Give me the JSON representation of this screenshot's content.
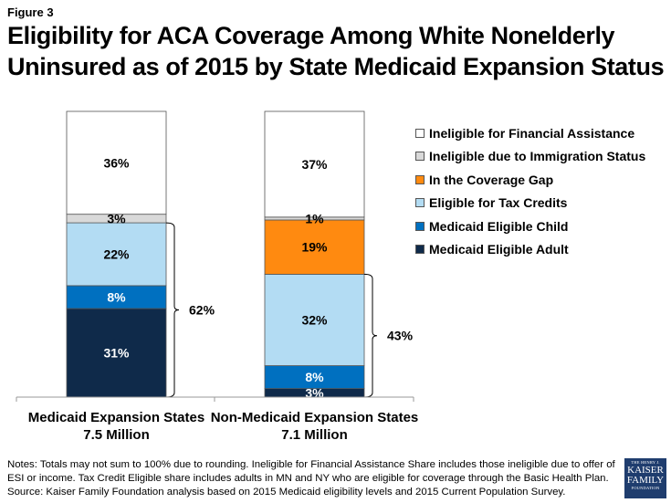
{
  "figure_label": "Figure 3",
  "title": "Eligibility for ACA Coverage Among White Nonelderly Uninsured as of 2015 by State Medicaid Expansion Status",
  "chart_data": {
    "type": "bar",
    "stacked": true,
    "percent_stacked": true,
    "title": "Eligibility for ACA Coverage Among White Nonelderly Uninsured as of 2015 by State Medicaid Expansion Status",
    "xlabel": "",
    "ylabel": "",
    "ylim": [
      0,
      100
    ],
    "grid": false,
    "legend_position": "right",
    "categories": [
      {
        "name": "Medicaid Expansion States",
        "subtitle": "7.5 Million"
      },
      {
        "name": "Non-Medicaid Expansion States",
        "subtitle": "7.1 Million"
      }
    ],
    "series": [
      {
        "name": "Medicaid Eligible Adult",
        "color": "#0f2a4a",
        "label_color": "#ffffff",
        "values": [
          31,
          3
        ],
        "labels": [
          "31%",
          "3%"
        ]
      },
      {
        "name": "Medicaid Eligible Child",
        "color": "#0070c0",
        "label_color": "#ffffff",
        "values": [
          8,
          8
        ],
        "labels": [
          "8%",
          "8%"
        ]
      },
      {
        "name": "Eligible for Tax Credits",
        "color": "#b3dcf3",
        "label_color": "#000000",
        "values": [
          22,
          32
        ],
        "labels": [
          "22%",
          "32%"
        ]
      },
      {
        "name": "In the Coverage Gap",
        "color": "#ff8a10",
        "label_color": "#000000",
        "values": [
          0,
          19
        ],
        "labels": [
          "",
          "19%"
        ]
      },
      {
        "name": "Ineligible due to Immigration Status",
        "color": "#d9d9d9",
        "label_color": "#000000",
        "values": [
          3,
          1
        ],
        "labels": [
          "3%",
          "1%"
        ]
      },
      {
        "name": "Ineligible for Financial Assistance",
        "color": "#ffffff",
        "label_color": "#000000",
        "values": [
          36,
          37
        ],
        "labels": [
          "36%",
          "37%"
        ]
      }
    ],
    "annotations": [
      {
        "category": 0,
        "label": "62%",
        "spans": [
          "Medicaid Eligible Adult",
          "Medicaid Eligible Child",
          "Eligible for Tax Credits"
        ],
        "type": "brace"
      },
      {
        "category": 1,
        "label": "43%",
        "spans": [
          "Medicaid Eligible Adult",
          "Medicaid Eligible Child",
          "Eligible for Tax Credits"
        ],
        "type": "brace"
      }
    ],
    "legend_order": [
      "Ineligible for Financial Assistance",
      "Ineligible due to Immigration Status",
      "In the Coverage Gap",
      "Eligible for Tax Credits",
      "Medicaid Eligible Child",
      "Medicaid Eligible Adult"
    ]
  },
  "legend": [
    {
      "label": "Ineligible for Financial Assistance",
      "color": "#ffffff"
    },
    {
      "label": "Ineligible due to Immigration Status",
      "color": "#d9d9d9"
    },
    {
      "label": "In the Coverage Gap",
      "color": "#ff8a10"
    },
    {
      "label": "Eligible for Tax Credits",
      "color": "#b3dcf3"
    },
    {
      "label": "Medicaid Eligible Child",
      "color": "#0070c0"
    },
    {
      "label": "Medicaid Eligible Adult",
      "color": "#0f2a4a"
    }
  ],
  "notes": {
    "line1": "Notes: Totals may not sum to 100% due to rounding. Ineligible for Financial Assistance Share includes those ineligible due to offer of",
    "line2": "ESI or income. Tax Credit Eligible share includes adults in MN and NY who are eligible for coverage through the Basic Health Plan.",
    "line3": "Source: Kaiser Family Foundation analysis based on 2015 Medicaid eligibility levels and 2015 Current Population Survey."
  },
  "logo": {
    "line1": "THE HENRY J.",
    "line2": "KAISER",
    "line3": "FAMILY",
    "line4": "FOUNDATION"
  }
}
